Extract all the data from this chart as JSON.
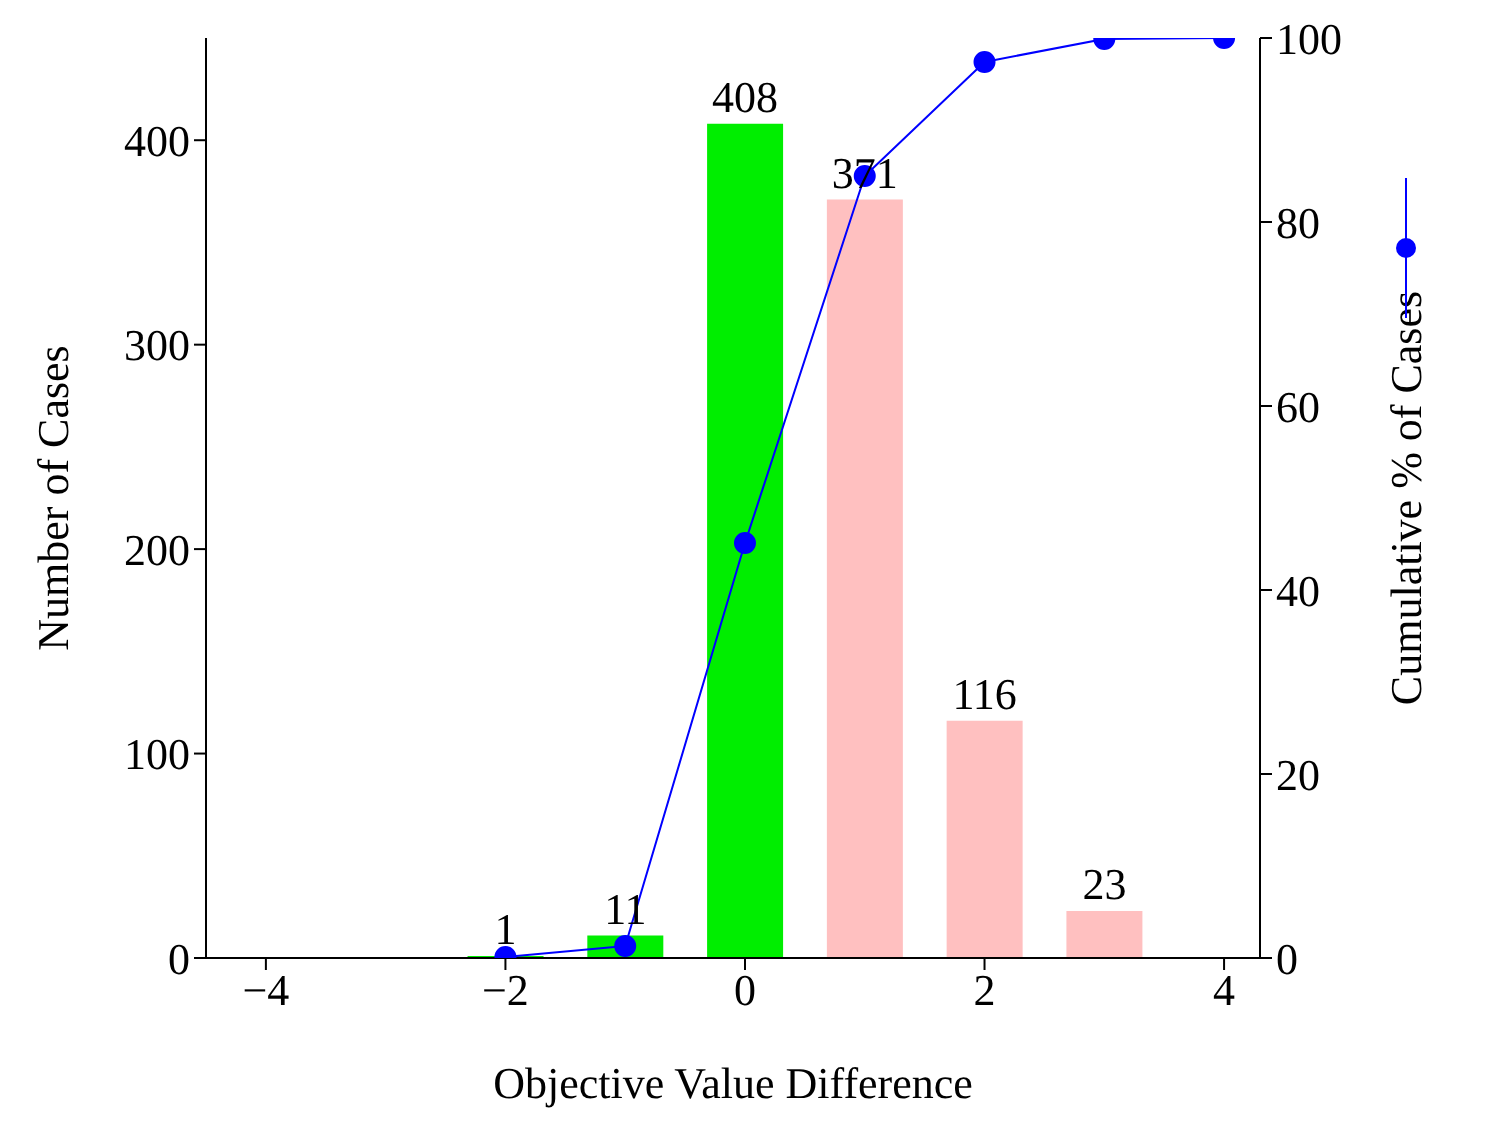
{
  "chart_data": {
    "type": "bar",
    "xlabel": "Objective Value Difference",
    "ylabel": "Number of Cases",
    "y2label": "Cumulative % of Cases",
    "x": [
      -2,
      -1,
      0,
      1,
      2,
      3,
      4
    ],
    "series": [
      {
        "values": [
          1,
          11,
          408,
          371,
          116,
          23,
          null
        ],
        "colors": [
          "#00ee00",
          "#00ee00",
          "#00ee00",
          "#ffc0c0",
          "#ffc0c0",
          "#ffc0c0",
          "#ffc0c0"
        ],
        "value_labels": [
          "1",
          "11",
          "408",
          "371",
          "116",
          "23",
          null
        ]
      },
      {
        "type": "line",
        "axis": "y2",
        "color": "#0000ff",
        "values": [
          0.1,
          1.3,
          45.1,
          85,
          97.4,
          99.9,
          100
        ]
      }
    ],
    "marker": "circle",
    "line_style": "solid",
    "xlim": [
      -4.5,
      4.3
    ],
    "xticks": [
      {
        "value": -4,
        "label": "−4"
      },
      {
        "value": -2,
        "label": "−2"
      },
      0,
      2,
      4
    ],
    "ylim": [
      0,
      450
    ],
    "yticks": [
      0,
      100,
      200,
      300,
      400
    ],
    "y2lim": [
      0,
      100
    ],
    "y2ticks": [
      0,
      20,
      40,
      60,
      80,
      100
    ]
  }
}
